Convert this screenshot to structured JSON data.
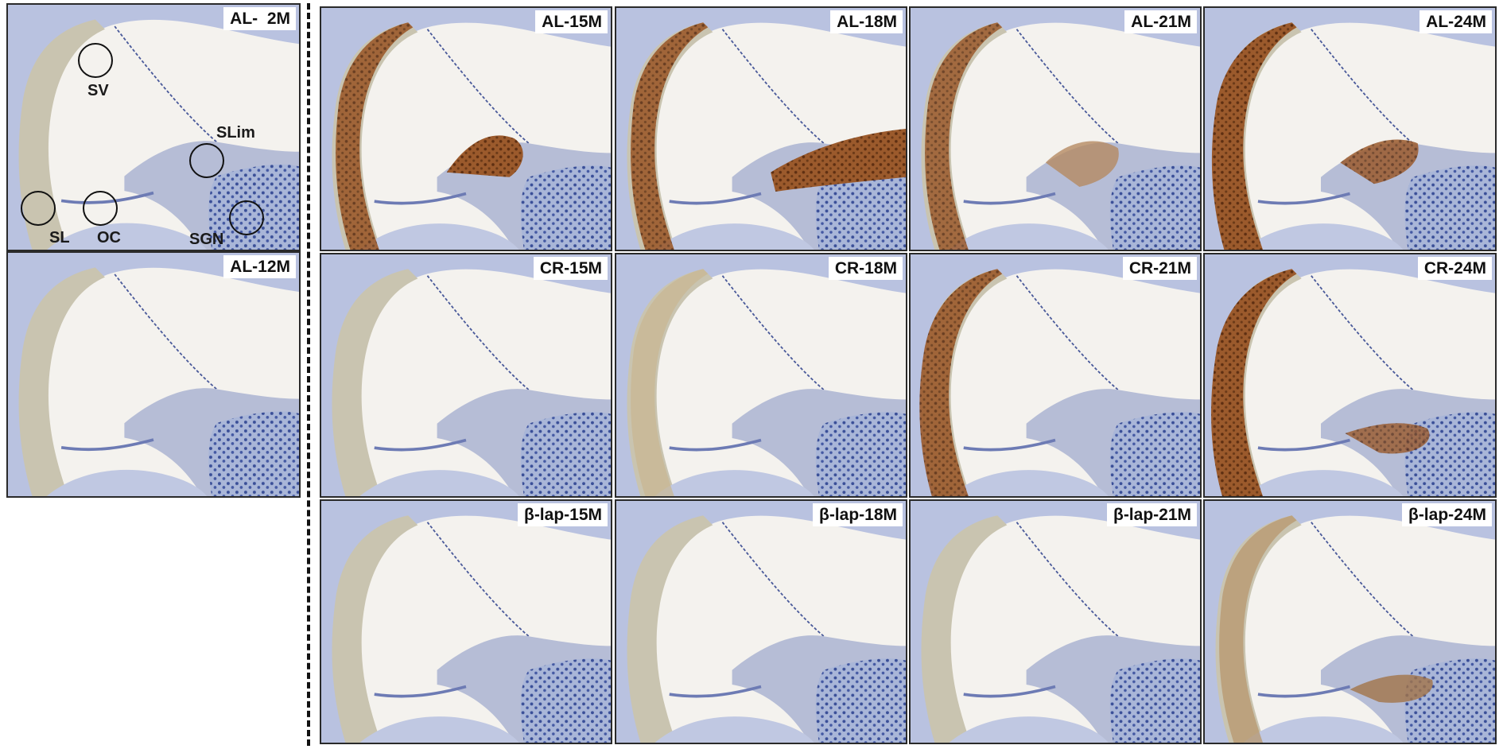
{
  "panels": {
    "al_2m": {
      "label": "AL-  2M"
    },
    "al_12m": {
      "label": "AL-12M"
    },
    "al_15m": {
      "label": "AL-15M"
    },
    "al_18m": {
      "label": "AL-18M"
    },
    "al_21m": {
      "label": "AL-21M"
    },
    "al_24m": {
      "label": "AL-24M"
    },
    "cr_15m": {
      "label": "CR-15M"
    },
    "cr_18m": {
      "label": "CR-18M"
    },
    "cr_21m": {
      "label": "CR-21M"
    },
    "cr_24m": {
      "label": "CR-24M"
    },
    "blap_15m": {
      "label": "β-lap-15M"
    },
    "blap_18m": {
      "label": "β-lap-18M"
    },
    "blap_21m": {
      "label": "β-lap-21M"
    },
    "blap_24m": {
      "label": "β-lap-24M"
    }
  },
  "annotations": {
    "sv": "SV",
    "slim": "SLim",
    "sl": "SL",
    "oc": "OC",
    "sgn": "SGN"
  },
  "colors": {
    "tissue_blue": "#8ea2cc",
    "bone_lavender": "#b9c2e0",
    "dab_brown": "#8a4a22",
    "background": "#f4f2ee"
  }
}
